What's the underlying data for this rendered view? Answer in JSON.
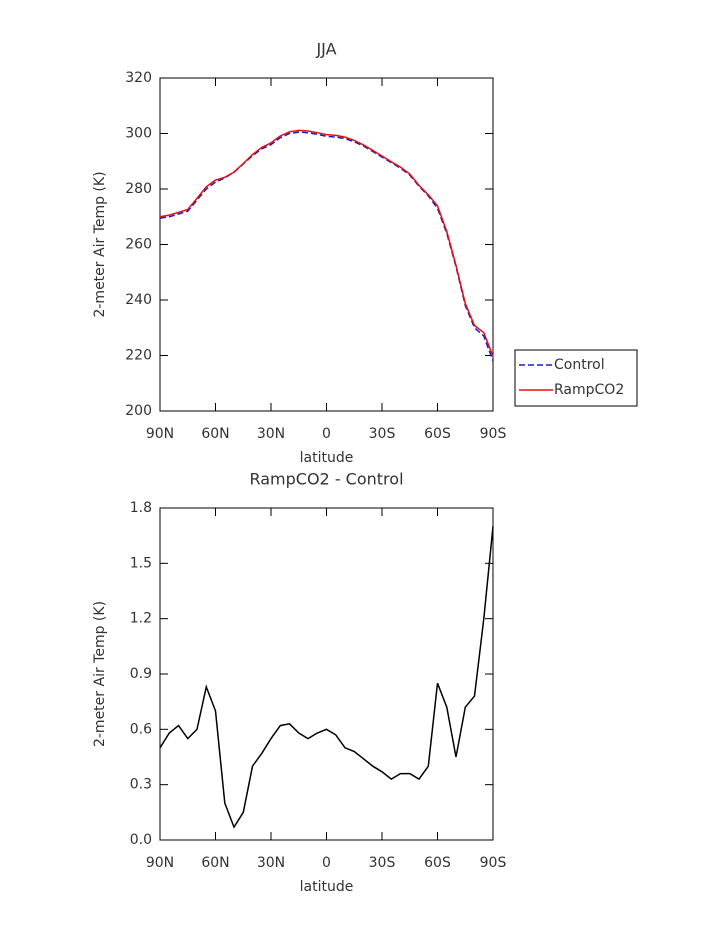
{
  "chart_data": [
    {
      "type": "line",
      "title": "JJA",
      "xlabel": "latitude",
      "ylabel": "2-meter Air Temp (K)",
      "x": [
        90,
        85,
        80,
        75,
        70,
        65,
        60,
        55,
        50,
        45,
        40,
        35,
        30,
        25,
        20,
        15,
        10,
        5,
        0,
        -5,
        -10,
        -15,
        -20,
        -25,
        -30,
        -35,
        -40,
        -45,
        -50,
        -55,
        -60,
        -65,
        -70,
        -75,
        -80,
        -85,
        -90
      ],
      "series": [
        {
          "name": "Control",
          "color": "#1a1acc",
          "dash": true,
          "values": [
            269.5,
            270,
            271,
            272,
            276,
            280,
            282.5,
            284,
            286,
            289,
            292,
            294.5,
            296,
            298.5,
            300,
            300.5,
            300.3,
            299.7,
            299,
            298.7,
            298.2,
            297,
            295.5,
            293.5,
            291.5,
            289.5,
            287.5,
            285,
            281,
            277.5,
            273,
            264,
            252,
            238,
            230,
            227,
            218
          ]
        },
        {
          "name": "RampCO2",
          "color": "#e01010",
          "dash": false,
          "values": [
            270,
            270.6,
            271.6,
            272.6,
            276.6,
            280.8,
            283.2,
            284.2,
            286.1,
            289.2,
            292.4,
            295,
            296.6,
            299.1,
            300.6,
            301.1,
            300.9,
            300.3,
            299.6,
            299.3,
            298.7,
            297.5,
            295.9,
            293.9,
            291.9,
            289.8,
            287.9,
            285.4,
            281.3,
            277.9,
            273.9,
            264.7,
            252.5,
            238.7,
            230.8,
            228.2,
            219.7
          ]
        }
      ],
      "xlim": [
        90,
        -90
      ],
      "xticks": [
        {
          "value": 90,
          "label": "90N"
        },
        {
          "value": 60,
          "label": "60N"
        },
        {
          "value": 30,
          "label": "30N"
        },
        0,
        {
          "value": -30,
          "label": "30S"
        },
        {
          "value": -60,
          "label": "60S"
        },
        {
          "value": -90,
          "label": "90S"
        }
      ],
      "ylim": [
        200,
        320
      ],
      "yticks": [
        200,
        220,
        240,
        260,
        280,
        300,
        320
      ],
      "legend": "right"
    },
    {
      "type": "line",
      "title": "RampCO2 - Control",
      "xlabel": "latitude",
      "ylabel": "2-meter Air Temp (K)",
      "x": [
        90,
        85,
        80,
        75,
        70,
        65,
        60,
        55,
        50,
        45,
        40,
        35,
        30,
        25,
        20,
        15,
        10,
        5,
        0,
        -5,
        -10,
        -15,
        -20,
        -25,
        -30,
        -35,
        -40,
        -45,
        -50,
        -55,
        -60,
        -65,
        -70,
        -75,
        -80,
        -85,
        -90
      ],
      "series": [
        {
          "name": null,
          "color": "#000000",
          "dash": false,
          "values": [
            0.5,
            0.58,
            0.62,
            0.55,
            0.6,
            0.83,
            0.7,
            0.2,
            0.07,
            0.15,
            0.4,
            0.47,
            0.55,
            0.62,
            0.63,
            0.58,
            0.55,
            0.58,
            0.6,
            0.57,
            0.5,
            0.48,
            0.44,
            0.4,
            0.37,
            0.33,
            0.36,
            0.36,
            0.33,
            0.4,
            0.85,
            0.72,
            0.45,
            0.72,
            0.78,
            1.2,
            1.7
          ]
        }
      ],
      "xlim": [
        90,
        -90
      ],
      "xticks": [
        {
          "value": 90,
          "label": "90N"
        },
        {
          "value": 60,
          "label": "60N"
        },
        {
          "value": 30,
          "label": "30N"
        },
        0,
        {
          "value": -30,
          "label": "30S"
        },
        {
          "value": -60,
          "label": "60S"
        },
        {
          "value": -90,
          "label": "90S"
        }
      ],
      "ylim": [
        0,
        1.8
      ],
      "yticks": [
        {
          "value": 0,
          "label": "0.0"
        },
        0.3,
        0.6,
        0.9,
        1.2,
        1.5,
        1.8
      ]
    }
  ]
}
